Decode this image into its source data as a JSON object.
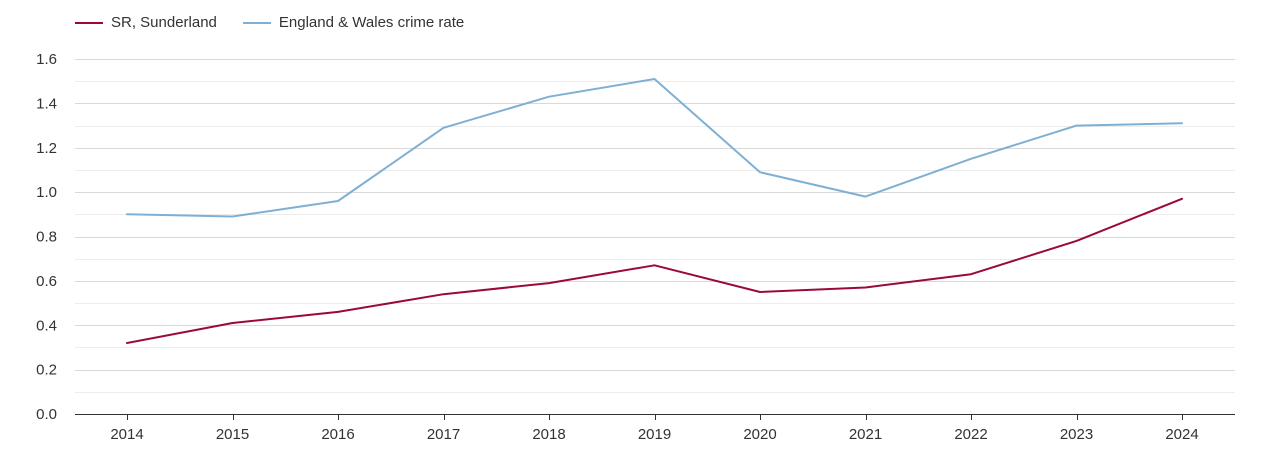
{
  "chart_data": {
    "type": "line",
    "title": "",
    "xlabel": "",
    "ylabel": "",
    "x": [
      "2014",
      "2015",
      "2016",
      "2017",
      "2018",
      "2019",
      "2020",
      "2021",
      "2022",
      "2023",
      "2024"
    ],
    "ylim": [
      0,
      1.6
    ],
    "yticks": [
      "0.0",
      "0.2",
      "0.4",
      "0.6",
      "0.8",
      "1.0",
      "1.2",
      "1.4",
      "1.6"
    ],
    "grid": true,
    "legend_position": "top-left",
    "series": [
      {
        "name": "SR, Sunderland",
        "color": "#9b0a35",
        "values": [
          0.32,
          0.41,
          0.46,
          0.54,
          0.59,
          0.67,
          0.55,
          0.57,
          0.63,
          0.78,
          0.97
        ]
      },
      {
        "name": "England & Wales crime rate",
        "color": "#7fb0d4",
        "values": [
          0.9,
          0.89,
          0.96,
          1.29,
          1.43,
          1.51,
          1.09,
          0.98,
          1.15,
          1.3,
          1.31
        ]
      }
    ]
  }
}
